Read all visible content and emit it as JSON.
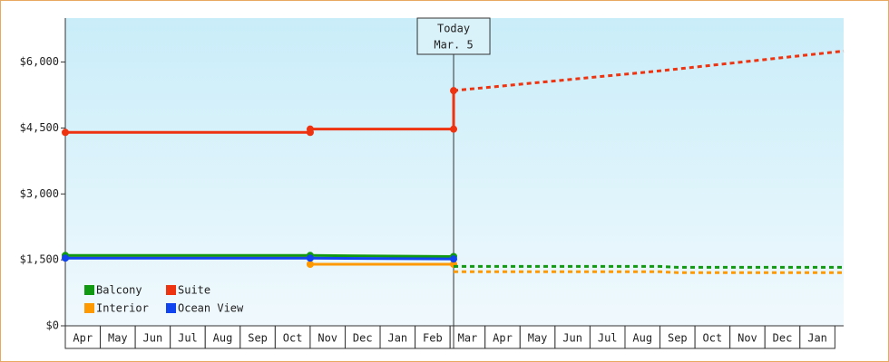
{
  "chart_data": {
    "type": "line",
    "categories": [
      "Apr",
      "May",
      "Jun",
      "Jul",
      "Aug",
      "Sep",
      "Oct",
      "Nov",
      "Dec",
      "Jan",
      "Feb",
      "Mar",
      "Apr",
      "May",
      "Jun",
      "Jul",
      "Aug",
      "Sep",
      "Oct",
      "Nov",
      "Dec",
      "Jan"
    ],
    "xlim": [
      0,
      22.25
    ],
    "ylim": [
      0,
      7000
    ],
    "yticks": [
      {
        "value": 0,
        "label": "$0"
      },
      {
        "value": 1500,
        "label": "$1,500"
      },
      {
        "value": 3000,
        "label": "$3,000"
      },
      {
        "value": 4500,
        "label": "$4,500"
      },
      {
        "value": 6000,
        "label": "$6,000"
      }
    ],
    "today": {
      "x": 11.1,
      "label": "Today",
      "date": "Mar. 5"
    },
    "legend": "lower left",
    "series": [
      {
        "name": "Balcony",
        "color": "#119911",
        "x": [
          0,
          7,
          11.1
        ],
        "values": [
          1600,
          1600,
          1575
        ],
        "forecast_x": [
          11.1,
          17,
          17.5,
          22.25
        ],
        "forecast_values": [
          1350,
          1350,
          1330,
          1330
        ]
      },
      {
        "name": "Suite",
        "color": "#ee3311",
        "x": [
          0,
          7,
          7,
          11.1,
          11.1
        ],
        "values": [
          4400,
          4400,
          4475,
          4475,
          5350
        ],
        "forecast_x": [
          11.1,
          17,
          22.25
        ],
        "forecast_values": [
          5350,
          5800,
          6250
        ]
      },
      {
        "name": "Interior",
        "color": "#ff9900",
        "x": [
          0,
          7,
          7,
          11.1
        ],
        "values": [
          1560,
          1560,
          1400,
          1400
        ],
        "forecast_x": [
          11.1,
          17,
          17.5,
          22.25
        ],
        "forecast_values": [
          1230,
          1230,
          1210,
          1210
        ]
      },
      {
        "name": "Ocean View",
        "color": "#1144ee",
        "x": [
          0,
          7,
          11.1
        ],
        "values": [
          1540,
          1540,
          1520
        ]
      }
    ]
  }
}
